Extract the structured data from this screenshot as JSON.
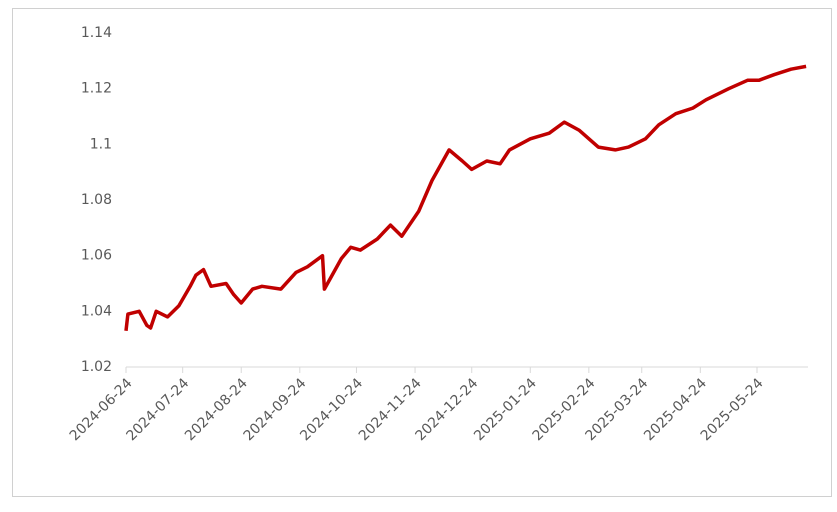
{
  "chart_data": {
    "type": "line",
    "color": "#c00000",
    "x": [
      "2024-06-24",
      "2024-06-25",
      "2024-07-01",
      "2024-07-05",
      "2024-07-07",
      "2024-07-10",
      "2024-07-16",
      "2024-07-22",
      "2024-07-28",
      "2024-07-31",
      "2024-08-04",
      "2024-08-08",
      "2024-08-16",
      "2024-08-20",
      "2024-08-24",
      "2024-08-30",
      "2024-09-04",
      "2024-09-14",
      "2024-09-22",
      "2024-09-28",
      "2024-10-06",
      "2024-10-07",
      "2024-10-16",
      "2024-10-21",
      "2024-10-26",
      "2024-11-04",
      "2024-11-11",
      "2024-11-17",
      "2024-11-26",
      "2024-12-03",
      "2024-12-12",
      "2024-12-19",
      "2024-12-24",
      "2025-01-01",
      "2025-01-08",
      "2025-01-13",
      "2025-01-24",
      "2025-02-03",
      "2025-02-11",
      "2025-02-19",
      "2025-02-24",
      "2025-03-01",
      "2025-03-10",
      "2025-03-17",
      "2025-03-26",
      "2025-04-02",
      "2025-04-11",
      "2025-04-20",
      "2025-04-27",
      "2025-05-09",
      "2025-05-19",
      "2025-05-25",
      "2025-06-02",
      "2025-06-11",
      "2025-06-19"
    ],
    "values": [
      1.033,
      1.039,
      1.04,
      1.035,
      1.034,
      1.04,
      1.038,
      1.042,
      1.049,
      1.053,
      1.055,
      1.049,
      1.05,
      1.046,
      1.043,
      1.048,
      1.049,
      1.048,
      1.054,
      1.056,
      1.06,
      1.048,
      1.059,
      1.063,
      1.062,
      1.066,
      1.071,
      1.067,
      1.076,
      1.087,
      1.098,
      1.094,
      1.091,
      1.094,
      1.093,
      1.098,
      1.102,
      1.104,
      1.108,
      1.105,
      1.102,
      1.099,
      1.098,
      1.099,
      1.102,
      1.107,
      1.111,
      1.113,
      1.116,
      1.12,
      1.123,
      1.123,
      1.125,
      1.127,
      1.128
    ],
    "xlim": [
      "2024-06-24",
      "2025-06-20"
    ],
    "xticks": [
      "2024-06-24",
      "2024-07-24",
      "2024-08-24",
      "2024-09-24",
      "2024-10-24",
      "2024-11-24",
      "2024-12-24",
      "2025-01-24",
      "2025-02-24",
      "2025-03-24",
      "2025-04-24",
      "2025-05-24"
    ],
    "ylim": [
      1.02,
      1.14
    ],
    "yticks": [
      1.02,
      1.04,
      1.06,
      1.08,
      1.1,
      1.12,
      1.14
    ],
    "grid": false
  }
}
